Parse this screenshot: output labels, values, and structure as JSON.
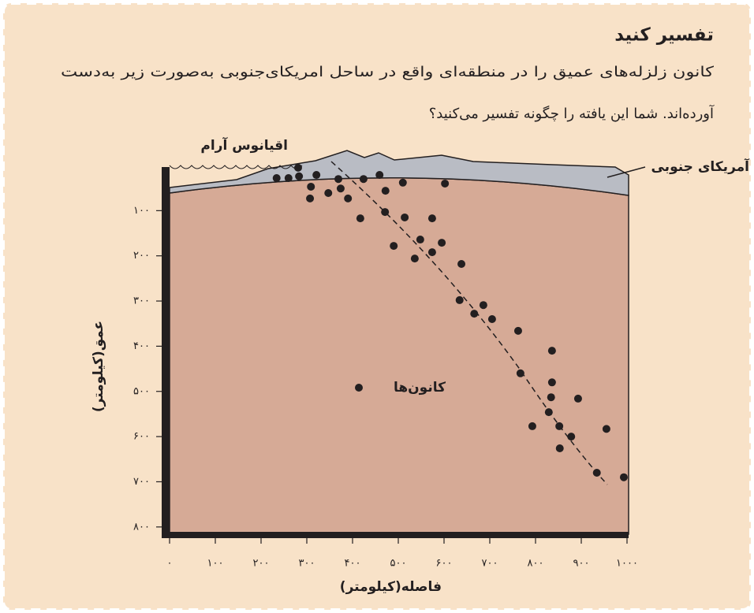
{
  "box": {
    "title": "تفسیر کنید",
    "lines": [
      "کانون زلزله‌های عمیق را در منطقه‌ای واقع در ساحل امریکای‌جنوبی به‌صورت زیر به‌دست",
      "آورده‌اند. شما این یافته را چگونه تفسیر می‌کنید؟"
    ]
  },
  "chart_data": {
    "type": "scatter",
    "x_label": "فاصله(کیلومتر)",
    "y_label": "عمق(کیلومتر)",
    "annotations": [
      "اقیانوس آرام",
      "آمریکای جنوبی"
    ],
    "xlim": [
      0,
      1000
    ],
    "ylim": [
      0,
      800
    ],
    "y_inverted": true,
    "xticks": [
      {
        "value": 0,
        "label": "۰"
      },
      {
        "value": 100,
        "label": "۱۰۰"
      },
      {
        "value": 200,
        "label": "۲۰۰"
      },
      {
        "value": 300,
        "label": "۳۰۰"
      },
      {
        "value": 400,
        "label": "۴۰۰"
      },
      {
        "value": 500,
        "label": "۵۰۰"
      },
      {
        "value": 600,
        "label": "۶۰۰"
      },
      {
        "value": 700,
        "label": "۷۰۰"
      },
      {
        "value": 800,
        "label": "۸۰۰"
      },
      {
        "value": 900,
        "label": "۹۰۰"
      },
      {
        "value": 1000,
        "label": "۱۰۰۰"
      }
    ],
    "yticks": [
      {
        "value": 100,
        "label": "۱۰۰"
      },
      {
        "value": 200,
        "label": "۲۰۰"
      },
      {
        "value": 300,
        "label": "۳۰۰"
      },
      {
        "value": 400,
        "label": "۴۰۰"
      },
      {
        "value": 500,
        "label": "۵۰۰"
      },
      {
        "value": 600,
        "label": "۶۰۰"
      },
      {
        "value": 700,
        "label": "۷۰۰"
      },
      {
        "value": 800,
        "label": "۸۰۰"
      }
    ],
    "x": [
      234,
      260,
      281,
      283,
      321,
      309,
      307,
      347,
      369,
      374,
      390,
      424,
      417,
      459,
      472,
      471,
      510,
      514,
      490,
      536,
      548,
      574,
      574,
      595,
      602,
      638,
      634,
      666,
      686,
      705,
      762,
      767,
      836,
      836,
      834,
      829,
      793,
      852,
      878,
      853,
      893,
      955,
      934,
      993
    ],
    "series": [
      {
        "name": "کانون‌ها",
        "color": "#231f20",
        "values": [
          28,
          28,
          5,
          24,
          21,
          47,
          73,
          61,
          30,
          51,
          73,
          30,
          117,
          21,
          56,
          103,
          38,
          115,
          178,
          206,
          164,
          117,
          192,
          171,
          40,
          218,
          298,
          328,
          309,
          340,
          366,
          460,
          410,
          480,
          513,
          546,
          577,
          577,
          600,
          626,
          516,
          583,
          680,
          690
        ]
      }
    ]
  }
}
